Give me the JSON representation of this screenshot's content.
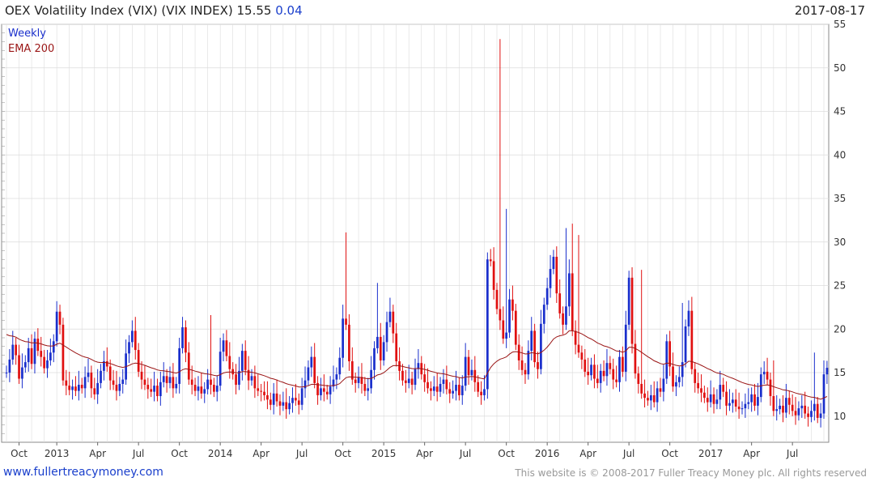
{
  "header": {
    "title": "OEX Volatility Index (VIX) (VIX INDEX) 15.55",
    "change": "0.04",
    "date": "2017-08-17"
  },
  "footer": {
    "site": "www.fullertreacymoney.com",
    "copyright": "This website is © 2008-2017 Fuller Treacy Money plc. All rights reserved"
  },
  "colors": {
    "up": "#1a2fcc",
    "down": "#e01010",
    "ema": "#9a1515",
    "grid": "#dcdcdc"
  },
  "chart_data": {
    "type": "candlestick",
    "legend": [
      "Weekly",
      "EMA 200"
    ],
    "ylim": [
      7,
      55
    ],
    "y_ticks": [
      10,
      15,
      20,
      25,
      30,
      35,
      40,
      45,
      50,
      55
    ],
    "x_tick_labels": [
      "Oct",
      "2013",
      "Apr",
      "Jul",
      "Oct",
      "2014",
      "Apr",
      "Jul",
      "Oct",
      "2015",
      "Apr",
      "Jul",
      "Oct",
      "2016",
      "Apr",
      "Jul",
      "Oct",
      "2017",
      "Apr",
      "Jul"
    ],
    "x_tick_weeks": [
      4,
      16,
      29,
      42,
      55,
      68,
      81,
      94,
      107,
      120,
      133,
      146,
      159,
      172,
      185,
      198,
      211,
      224,
      237,
      250
    ],
    "total_weeks": 260,
    "weekly_close": [
      15.0,
      16.5,
      18.2,
      17.0,
      14.3,
      15.6,
      16.2,
      17.8,
      16.0,
      18.9,
      17.5,
      16.8,
      15.5,
      16.4,
      17.3,
      18.6,
      22.0,
      20.5,
      14.1,
      13.5,
      13.0,
      13.4,
      12.9,
      13.6,
      13.2,
      14.5,
      15.0,
      13.2,
      12.5,
      13.8,
      15.2,
      16.3,
      15.7,
      14.1,
      13.6,
      12.9,
      13.7,
      14.2,
      17.2,
      18.5,
      19.8,
      17.6,
      15.1,
      14.2,
      13.6,
      13.1,
      12.8,
      13.5,
      12.3,
      13.9,
      14.6,
      13.8,
      14.5,
      13.2,
      13.7,
      17.8,
      20.2,
      17.3,
      14.2,
      13.6,
      12.9,
      13.4,
      12.6,
      13.1,
      14.2,
      13.6,
      12.8,
      13.5,
      17.4,
      18.7,
      16.9,
      15.4,
      14.8,
      13.6,
      15.2,
      17.5,
      15.3,
      14.1,
      14.6,
      13.2,
      12.9,
      12.8,
      12.4,
      11.9,
      11.3,
      12.6,
      11.7,
      11.2,
      11.6,
      10.8,
      11.5,
      12.1,
      11.8,
      11.3,
      13.2,
      14.1,
      15.6,
      16.8,
      13.8,
      12.4,
      13.2,
      12.8,
      12.5,
      13.4,
      14.2,
      14.8,
      16.7,
      21.2,
      20.5,
      16.3,
      14.2,
      13.8,
      14.5,
      13.7,
      12.9,
      13.2,
      15.3,
      17.8,
      19.1,
      16.4,
      18.5,
      20.8,
      22.0,
      19.5,
      16.3,
      15.2,
      14.1,
      13.8,
      14.3,
      13.6,
      15.4,
      16.1,
      14.8,
      13.9,
      13.2,
      12.9,
      13.4,
      12.8,
      13.7,
      14.2,
      13.1,
      12.6,
      12.9,
      13.6,
      12.4,
      13.5,
      16.8,
      14.7,
      15.3,
      13.9,
      12.8,
      12.4,
      13.1,
      28.0,
      27.8,
      24.5,
      22.3,
      21.0,
      18.9,
      19.6,
      23.4,
      22.1,
      18.2,
      16.4,
      15.3,
      14.8,
      17.5,
      19.8,
      16.2,
      15.4,
      20.6,
      22.8,
      24.7,
      26.9,
      28.3,
      24.1,
      21.8,
      20.5,
      22.6,
      26.4,
      19.8,
      18.2,
      17.3,
      16.5,
      15.1,
      14.7,
      15.9,
      14.3,
      13.8,
      15.2,
      14.6,
      16.1,
      15.4,
      14.2,
      13.9,
      16.8,
      15.1,
      20.5,
      25.9,
      18.3,
      14.9,
      13.7,
      12.6,
      12.1,
      11.8,
      12.4,
      11.6,
      13.2,
      12.8,
      14.3,
      18.6,
      15.7,
      13.4,
      13.9,
      14.5,
      16.2,
      20.3,
      22.1,
      15.4,
      13.8,
      13.2,
      12.7,
      12.1,
      11.6,
      12.5,
      11.4,
      11.9,
      13.6,
      12.8,
      11.2,
      11.5,
      11.9,
      11.1,
      10.8,
      10.9,
      11.4,
      11.6,
      12.5,
      11.2,
      12.2,
      14.8,
      15.1,
      14.2,
      12.3,
      10.6,
      10.8,
      11.2,
      10.4,
      12.1,
      11.3,
      10.6,
      10.1,
      10.9,
      11.2,
      10.3,
      9.9,
      10.6,
      11.4,
      9.8,
      10.3,
      14.8,
      15.55
    ],
    "spikes": [
      {
        "week": 17,
        "high": 22.8
      },
      {
        "week": 56,
        "high": 21.4
      },
      {
        "week": 65,
        "high": 21.6
      },
      {
        "week": 108,
        "high": 31.1
      },
      {
        "week": 118,
        "high": 25.3
      },
      {
        "week": 157,
        "high": 53.3
      },
      {
        "week": 159,
        "high": 33.8
      },
      {
        "week": 178,
        "high": 31.6
      },
      {
        "week": 180,
        "high": 32.1
      },
      {
        "week": 182,
        "high": 30.8
      },
      {
        "week": 202,
        "high": 26.8
      },
      {
        "week": 215,
        "high": 23.0
      },
      {
        "week": 244,
        "high": 16.4
      },
      {
        "week": 257,
        "high": 17.3
      }
    ],
    "ema_start": 19.6
  }
}
